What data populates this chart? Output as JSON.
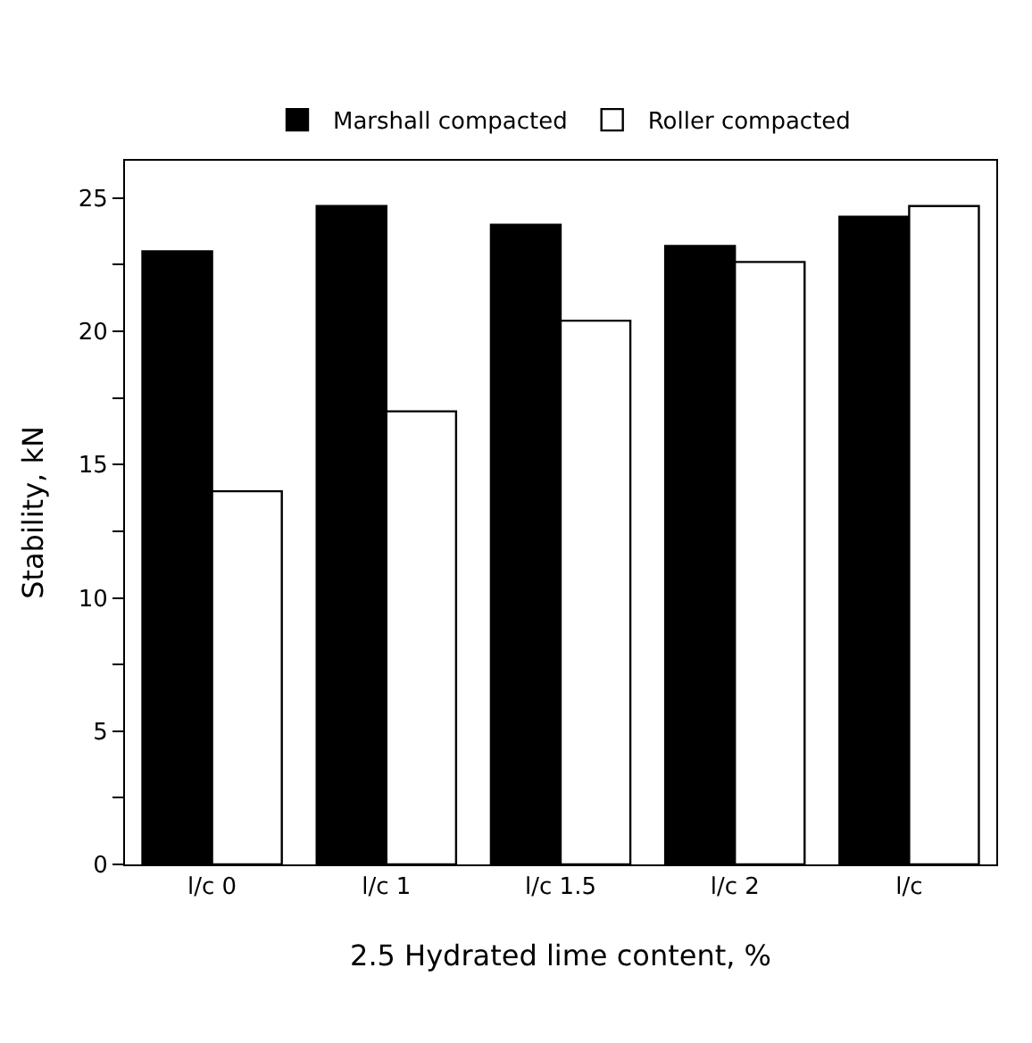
{
  "chart_data": {
    "type": "bar",
    "categories": [
      "l/c 0",
      "l/c 1",
      "l/c 1.5",
      "l/c 2",
      "l/c"
    ],
    "xlabel": "2.5 Hydrated lime content, %",
    "ylabel": "Stability, kN",
    "series": [
      {
        "name": "Marshall compacted",
        "color": "#000000",
        "values": [
          23.0,
          24.7,
          24.0,
          23.2,
          24.3
        ]
      },
      {
        "name": "Roller compacted",
        "color": "#ffffff",
        "values": [
          14.0,
          17.0,
          20.4,
          22.6,
          24.7
        ]
      }
    ],
    "ylim": [
      0,
      26.4
    ],
    "yticks": [
      0,
      {
        "value": 2.5,
        "label": null
      },
      5,
      {
        "value": 7.5,
        "label": null
      },
      10,
      {
        "value": 12.5,
        "label": null
      },
      15,
      {
        "value": 17.5,
        "label": null
      },
      20,
      {
        "value": 22.5,
        "label": null
      },
      25
    ],
    "legend": "top"
  }
}
